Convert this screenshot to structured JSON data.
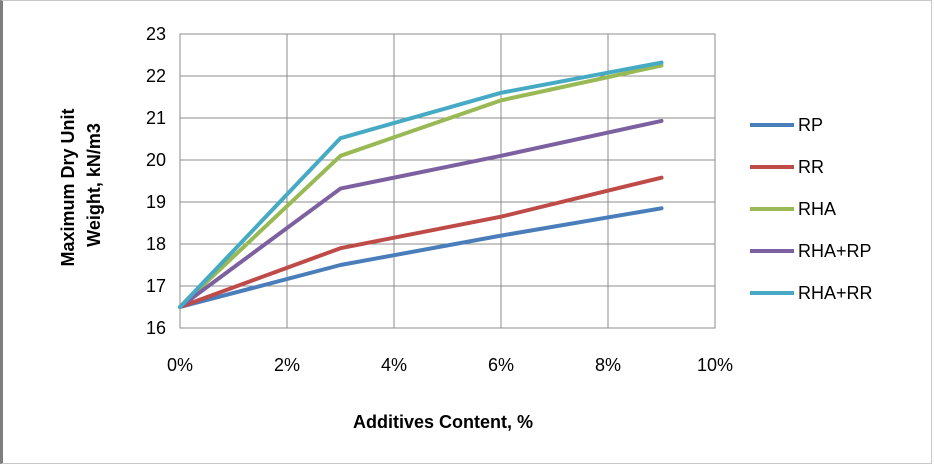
{
  "chart_data": {
    "type": "line",
    "title": "",
    "xlabel": "Additives Content, %",
    "ylabel_lines": [
      "Maximum Dry Unit",
      "Weight, kN/m3"
    ],
    "x": [
      0,
      3,
      6,
      9
    ],
    "xlim": [
      0,
      10
    ],
    "ylim": [
      16,
      23
    ],
    "x_ticks": [
      0,
      2,
      4,
      6,
      8,
      10
    ],
    "x_tick_labels": [
      "0%",
      "2%",
      "4%",
      "6%",
      "8%",
      "10%"
    ],
    "y_ticks": [
      16,
      17,
      18,
      19,
      20,
      21,
      22,
      23
    ],
    "y_tick_labels": [
      "16",
      "17",
      "18",
      "19",
      "20",
      "21",
      "22",
      "23"
    ],
    "grid": true,
    "legend_position": "right",
    "series": [
      {
        "name": "RP",
        "color": "#4a7ebb",
        "values": [
          16.5,
          17.5,
          18.2,
          18.85
        ]
      },
      {
        "name": "RR",
        "color": "#be4b48",
        "values": [
          16.5,
          17.9,
          18.65,
          19.58
        ]
      },
      {
        "name": "RHA",
        "color": "#98b954",
        "values": [
          16.5,
          20.1,
          21.42,
          22.25
        ]
      },
      {
        "name": "RHA+RP",
        "color": "#7d60a0",
        "values": [
          16.5,
          19.32,
          20.1,
          20.93
        ]
      },
      {
        "name": "RHA+RR",
        "color": "#46aac5",
        "values": [
          16.5,
          20.52,
          21.6,
          22.32
        ]
      }
    ]
  }
}
